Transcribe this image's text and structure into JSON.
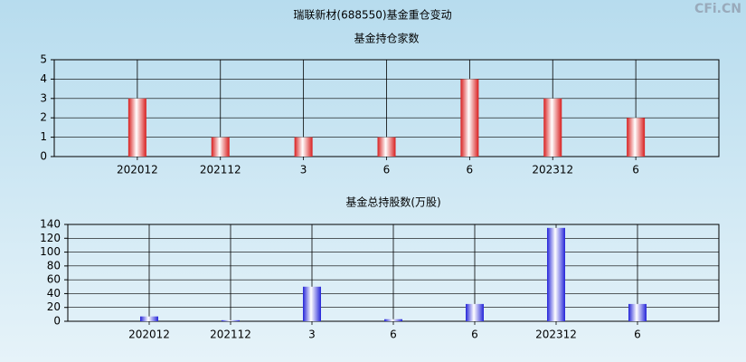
{
  "header": {
    "title": "瑞联新材(688550)基金重仓变动",
    "watermark": "CFi.CN"
  },
  "chart_data": [
    {
      "type": "bar",
      "title": "基金持仓家数",
      "categories": [
        "202012",
        "202112",
        "3",
        "6",
        "6",
        "202312",
        "6"
      ],
      "values": [
        3,
        1,
        1,
        1,
        4,
        3,
        2
      ],
      "color": "#d81e1e",
      "ylim": [
        0,
        5
      ],
      "yticks": [
        0,
        1,
        2,
        3,
        4,
        5
      ],
      "grid": true
    },
    {
      "type": "bar",
      "title": "基金总持股数(万股)",
      "categories": [
        "202012",
        "202112",
        "3",
        "6",
        "6",
        "202312",
        "6"
      ],
      "values": [
        7,
        1.5,
        50,
        3,
        25,
        135,
        25
      ],
      "color": "#2424d8",
      "ylim": [
        0,
        140
      ],
      "yticks": [
        0,
        20,
        40,
        60,
        80,
        100,
        120,
        140
      ],
      "grid": true
    }
  ]
}
